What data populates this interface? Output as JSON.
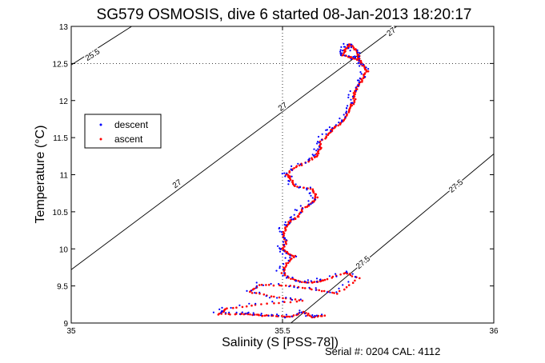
{
  "chart_data": {
    "type": "scatter",
    "title": "SG579 OSMOSIS, dive 6 started 08-Jan-2013 18:20:17",
    "xlabel": "Salinity (S [PSS-78])",
    "ylabel": "Temperature (°C)",
    "xlim": [
      35,
      36
    ],
    "ylim": [
      9,
      13
    ],
    "xticks": [
      35,
      35.5,
      36
    ],
    "xtick_labels": [
      "35",
      "35.5",
      "36"
    ],
    "yticks": [
      9,
      9.5,
      10,
      10.5,
      11,
      11.5,
      12,
      12.5,
      13
    ],
    "ytick_labels": [
      "9",
      "9.5",
      "10",
      "10.5",
      "11",
      "11.5",
      "12",
      "12.5",
      "13"
    ],
    "grid": "dotted at 35.5 and 12.5",
    "legend_position": "left",
    "series": [
      {
        "name": "descent",
        "color": "#0000ff",
        "marker": "dot"
      },
      {
        "name": "ascent",
        "color": "#ff0000",
        "marker": "dot"
      }
    ],
    "profile": [
      [
        35.6,
        9.1
      ],
      [
        35.57,
        9.08
      ],
      [
        35.55,
        9.15
      ],
      [
        35.52,
        9.08
      ],
      [
        35.48,
        9.1
      ],
      [
        35.45,
        9.1
      ],
      [
        35.42,
        9.12
      ],
      [
        35.4,
        9.12
      ],
      [
        35.35,
        9.12
      ],
      [
        35.37,
        9.2
      ],
      [
        35.45,
        9.25
      ],
      [
        35.55,
        9.3
      ],
      [
        35.48,
        9.35
      ],
      [
        35.42,
        9.42
      ],
      [
        35.45,
        9.52
      ],
      [
        35.52,
        9.5
      ],
      [
        35.58,
        9.45
      ],
      [
        35.63,
        9.4
      ],
      [
        35.68,
        9.6
      ],
      [
        35.65,
        9.68
      ],
      [
        35.6,
        9.58
      ],
      [
        35.58,
        9.55
      ],
      [
        35.55,
        9.55
      ],
      [
        35.52,
        9.6
      ],
      [
        35.5,
        9.68
      ],
      [
        35.51,
        9.8
      ],
      [
        35.53,
        9.9
      ],
      [
        35.51,
        9.95
      ],
      [
        35.5,
        10.0
      ],
      [
        35.51,
        10.1
      ],
      [
        35.5,
        10.2
      ],
      [
        35.51,
        10.3
      ],
      [
        35.52,
        10.38
      ],
      [
        35.54,
        10.45
      ],
      [
        35.55,
        10.55
      ],
      [
        35.57,
        10.62
      ],
      [
        35.58,
        10.7
      ],
      [
        35.57,
        10.8
      ],
      [
        35.53,
        10.85
      ],
      [
        35.52,
        10.95
      ],
      [
        35.51,
        11.0
      ],
      [
        35.53,
        11.1
      ],
      [
        35.56,
        11.18
      ],
      [
        35.58,
        11.25
      ],
      [
        35.59,
        11.35
      ],
      [
        35.59,
        11.45
      ],
      [
        35.61,
        11.55
      ],
      [
        35.62,
        11.62
      ],
      [
        35.64,
        11.7
      ],
      [
        35.65,
        11.8
      ],
      [
        35.66,
        11.9
      ],
      [
        35.67,
        12.0
      ],
      [
        35.67,
        12.1
      ],
      [
        35.68,
        12.2
      ],
      [
        35.69,
        12.3
      ],
      [
        35.7,
        12.4
      ],
      [
        35.69,
        12.48
      ],
      [
        35.68,
        12.55
      ],
      [
        35.68,
        12.62
      ],
      [
        35.67,
        12.7
      ],
      [
        35.66,
        12.76
      ],
      [
        35.65,
        12.7
      ],
      [
        35.64,
        12.62
      ],
      [
        35.66,
        12.58
      ],
      [
        35.68,
        12.55
      ]
    ],
    "contours": [
      {
        "label": "25.5",
        "points": [
          [
            35.0,
            12.48
          ],
          [
            35.143,
            13.0
          ]
        ]
      },
      {
        "label": "27",
        "points": [
          [
            35.0,
            9.72
          ],
          [
            35.77,
            13.0
          ]
        ]
      },
      {
        "label": "27.5",
        "points": [
          [
            35.52,
            9.0
          ],
          [
            36.0,
            11.28
          ]
        ]
      }
    ],
    "contour_labels": [
      {
        "text": "25.5",
        "x": 35.05,
        "y": 12.62
      },
      {
        "text": "27",
        "x": 35.25,
        "y": 10.88
      },
      {
        "text": "27",
        "x": 35.5,
        "y": 11.92
      },
      {
        "text": "27",
        "x": 35.757,
        "y": 12.93
      },
      {
        "text": "27.5",
        "x": 35.69,
        "y": 9.82
      },
      {
        "text": "27.5",
        "x": 35.91,
        "y": 10.85
      }
    ]
  },
  "footer": {
    "serial": "Serial #: 0204  CAL: 4112"
  }
}
